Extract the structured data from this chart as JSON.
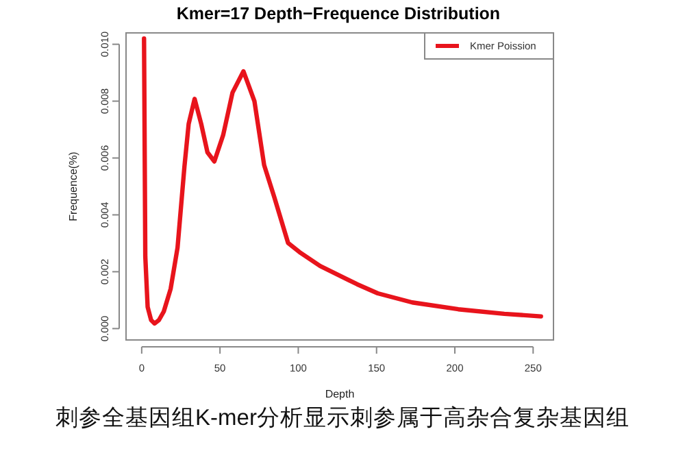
{
  "chart_data": {
    "type": "line",
    "title": "Kmer=17 Depth−Frequence Distribution",
    "xlabel": "Depth",
    "ylabel": "Frequence(%)",
    "x": [
      1.5,
      2.3,
      3.8,
      6,
      8.2,
      11,
      14.1,
      18.5,
      22.9,
      27.3,
      30,
      33.8,
      38,
      42,
      46.4,
      52,
      58,
      65,
      72,
      78.2,
      84.7,
      93.5,
      100.8,
      114,
      137.6,
      150.8,
      172.8,
      202.2,
      231.6,
      255
    ],
    "series": [
      {
        "name": "Kmer Poission",
        "color": "#e8141c",
        "values": [
          0.0102,
          0.00253,
          0.00076,
          0.0003,
          0.00018,
          0.0003,
          0.0006,
          0.0014,
          0.00285,
          0.0057,
          0.0072,
          0.00808,
          0.0072,
          0.0062,
          0.00588,
          0.0068,
          0.0083,
          0.00905,
          0.008,
          0.00575,
          0.00462,
          0.00301,
          0.00269,
          0.0022,
          0.00156,
          0.00124,
          0.00092,
          0.00068,
          0.00052,
          0.00043
        ]
      }
    ],
    "xlim": [
      -10,
      263
    ],
    "ylim": [
      -0.0004,
      0.0104
    ],
    "xticks": [
      0,
      50,
      100,
      150,
      200,
      250
    ],
    "yticks": [
      {
        "value": 0,
        "label": "0.000"
      },
      {
        "value": 0.002,
        "label": "0.002"
      },
      {
        "value": 0.004,
        "label": "0.004"
      },
      {
        "value": 0.006,
        "label": "0.006"
      },
      {
        "value": 0.008,
        "label": "0.008"
      },
      {
        "value": 0.01,
        "label": "0.010"
      }
    ],
    "grid": false,
    "legend": "top right",
    "marker": "none",
    "line_style": "solid",
    "annotations": [
      "刺参全基因组K-mer分析显示刺参属于高杂合复杂基因组"
    ]
  }
}
